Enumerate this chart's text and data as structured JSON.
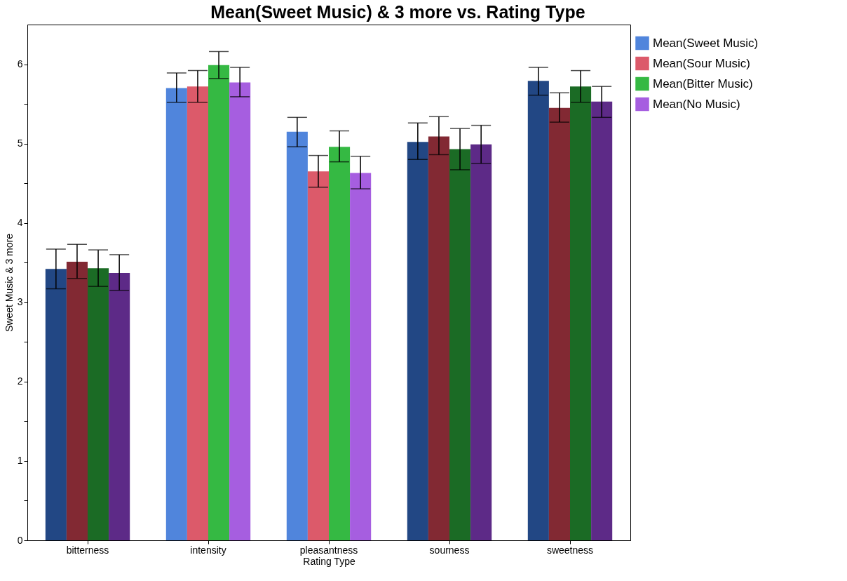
{
  "chart_data": {
    "type": "bar",
    "title": "Mean(Sweet Music) & 3 more vs. Rating Type",
    "xlabel": "Rating Type",
    "ylabel": "Sweet Music & 3 more",
    "categories": [
      "bitterness",
      "intensity",
      "pleasantness",
      "sourness",
      "sweetness"
    ],
    "series": [
      {
        "name": "Mean(Sweet Music)",
        "color": "#5085dc",
        "colors": [
          "#224784",
          "#5085dc",
          "#5085dc",
          "#224784",
          "#224784"
        ],
        "values": [
          3.42,
          5.7,
          5.15,
          5.02,
          5.79
        ],
        "errors": [
          [
            3.17,
            3.67
          ],
          [
            5.52,
            5.89
          ],
          [
            4.96,
            5.33
          ],
          [
            4.8,
            5.26
          ],
          [
            5.61,
            5.96
          ]
        ]
      },
      {
        "name": "Mean(Sour Music)",
        "color": "#dc5a6a",
        "colors": [
          "#822933",
          "#dc5a6a",
          "#dc5a6a",
          "#822933",
          "#822933"
        ],
        "values": [
          3.51,
          5.72,
          4.65,
          5.09,
          5.45
        ],
        "errors": [
          [
            3.3,
            3.73
          ],
          [
            5.52,
            5.92
          ],
          [
            4.45,
            4.85
          ],
          [
            4.86,
            5.34
          ],
          [
            5.27,
            5.64
          ]
        ]
      },
      {
        "name": "Mean(Bitter Music)",
        "color": "#35b943",
        "colors": [
          "#1b6b25",
          "#35b943",
          "#35b943",
          "#1b6b25",
          "#1b6b25"
        ],
        "values": [
          3.43,
          5.99,
          4.96,
          4.93,
          5.72
        ],
        "errors": [
          [
            3.2,
            3.66
          ],
          [
            5.82,
            6.16
          ],
          [
            4.77,
            5.16
          ],
          [
            4.67,
            5.19
          ],
          [
            5.52,
            5.92
          ]
        ]
      },
      {
        "name": "Mean(No Music)",
        "color": "#a65ee0",
        "colors": [
          "#5d2a87",
          "#a65ee0",
          "#a65ee0",
          "#5d2a87",
          "#5d2a87"
        ],
        "values": [
          3.37,
          5.77,
          4.63,
          4.99,
          5.53
        ],
        "errors": [
          [
            3.15,
            3.6
          ],
          [
            5.59,
            5.96
          ],
          [
            4.43,
            4.84
          ],
          [
            4.75,
            5.23
          ],
          [
            5.33,
            5.72
          ]
        ]
      }
    ],
    "ylim": [
      0,
      6.5
    ],
    "yticks": [
      0,
      {
        "value": 0.5,
        "label": null
      },
      1,
      {
        "value": 1.5,
        "label": null
      },
      2,
      {
        "value": 2.5,
        "label": null
      },
      3,
      {
        "value": 3.5,
        "label": null
      },
      4,
      {
        "value": 4.5,
        "label": null
      },
      5,
      {
        "value": 5.5,
        "label": null
      },
      6
    ],
    "grid": false,
    "legend": "top right"
  }
}
